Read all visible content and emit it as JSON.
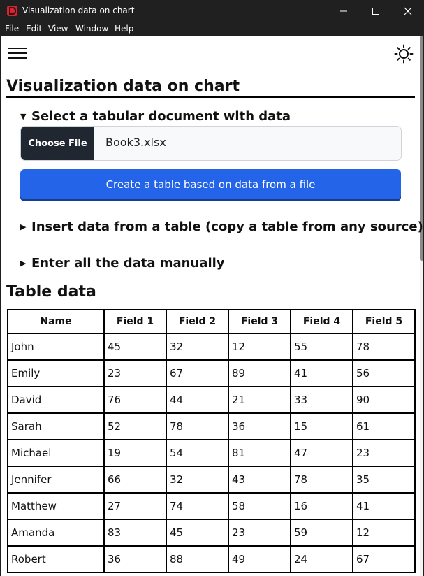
{
  "window": {
    "title": "Visualization data on chart",
    "icon": "app-logo-icon"
  },
  "menu": {
    "items": [
      "File",
      "Edit",
      "View",
      "Window",
      "Help"
    ]
  },
  "toolbar": {
    "menu_icon": "hamburger-menu-icon",
    "theme_icon": "sun-icon"
  },
  "page": {
    "title": "Visualization data on chart"
  },
  "sections": {
    "select_file": {
      "label": "Select a tabular document with data",
      "expanded": true,
      "choose_file_label": "Choose File",
      "file_name": "Book3.xlsx",
      "create_button_label": "Create a table based on data from a file"
    },
    "insert_table": {
      "label": "Insert data from a table (copy a table from any source)",
      "expanded": false
    },
    "manual": {
      "label": "Enter all the data manually",
      "expanded": false
    }
  },
  "table": {
    "heading": "Table data",
    "columns": [
      "Name",
      "Field 1",
      "Field 2",
      "Field 3",
      "Field 4",
      "Field 5"
    ],
    "rows": [
      [
        "John",
        "45",
        "32",
        "12",
        "55",
        "78"
      ],
      [
        "Emily",
        "23",
        "67",
        "89",
        "41",
        "56"
      ],
      [
        "David",
        "76",
        "44",
        "21",
        "33",
        "90"
      ],
      [
        "Sarah",
        "52",
        "78",
        "36",
        "15",
        "61"
      ],
      [
        "Michael",
        "19",
        "54",
        "81",
        "47",
        "23"
      ],
      [
        "Jennifer",
        "66",
        "32",
        "43",
        "78",
        "35"
      ],
      [
        "Matthew",
        "27",
        "74",
        "58",
        "16",
        "41"
      ],
      [
        "Amanda",
        "83",
        "45",
        "23",
        "59",
        "12"
      ],
      [
        "Robert",
        "36",
        "88",
        "49",
        "24",
        "67"
      ]
    ]
  },
  "colors": {
    "titlebar": "#202020",
    "primary_button": "#2364e9",
    "file_button": "#212730"
  }
}
